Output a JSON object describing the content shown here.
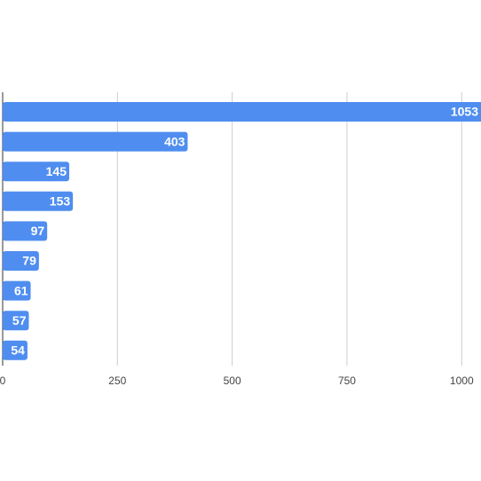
{
  "chart_data": {
    "type": "hbar",
    "categories": [
      null,
      null,
      null,
      null,
      null,
      null,
      null,
      null,
      null
    ],
    "values": [
      1053,
      403,
      145,
      153,
      97,
      79,
      61,
      57,
      54
    ],
    "color": "#4f8ef0",
    "xlim": [
      0,
      1042
    ],
    "xticks": [
      0,
      250,
      500,
      750,
      1000
    ],
    "grid": true
  }
}
